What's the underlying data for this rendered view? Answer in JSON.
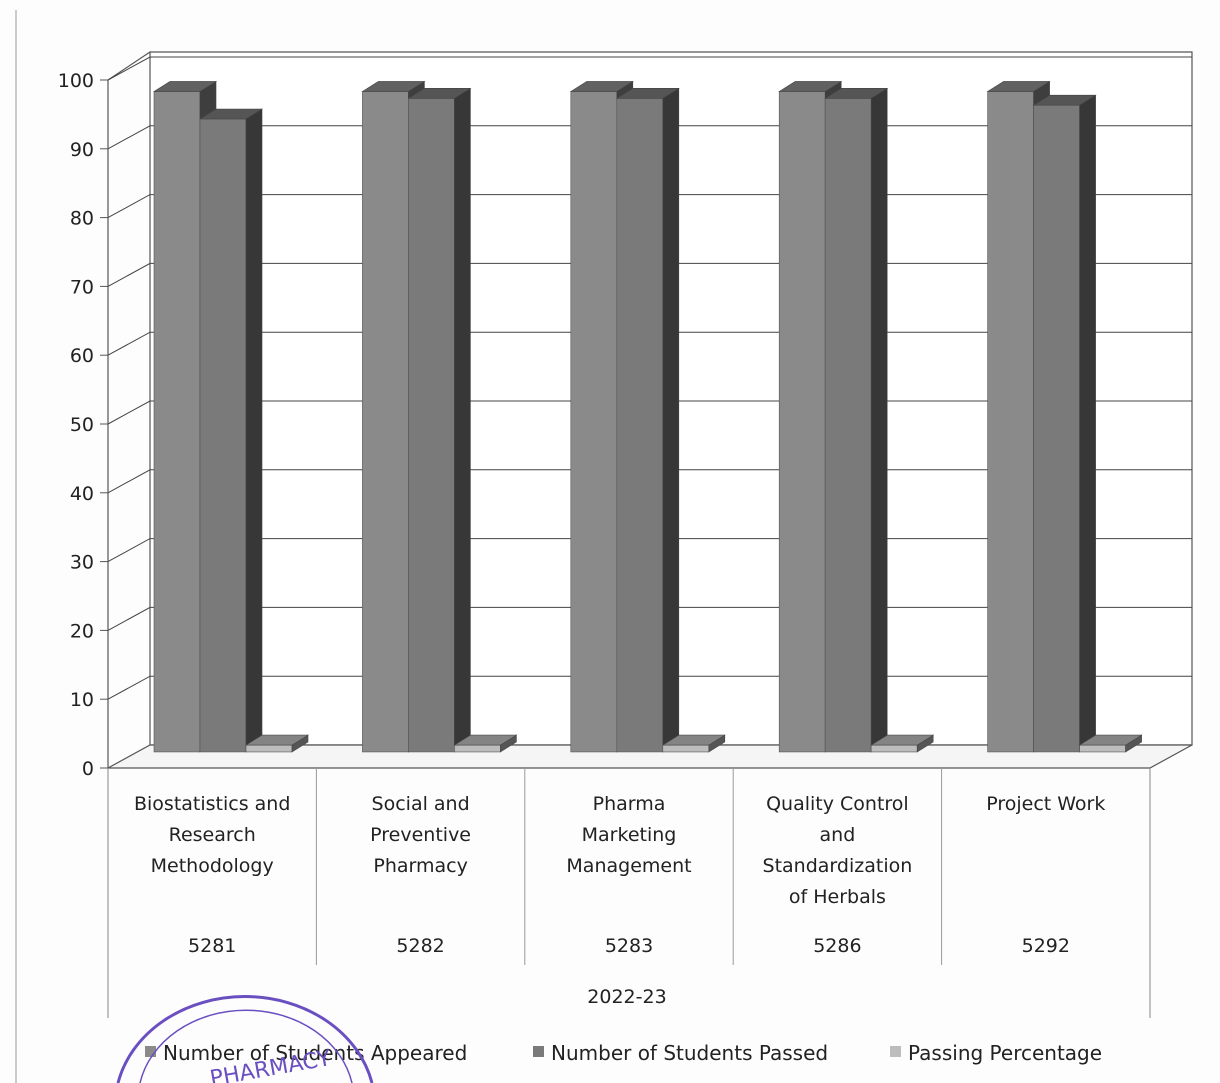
{
  "chart_data": {
    "type": "bar",
    "three_d": true,
    "group_label": "2022-23",
    "categories": [
      {
        "name": "Biostatistics and Research Methodology",
        "lines": [
          "Biostatistics and",
          "Research",
          "Methodology"
        ],
        "code": "5281"
      },
      {
        "name": "Social and Preventive Pharmacy",
        "lines": [
          "Social and",
          "Preventive",
          "Pharmacy"
        ],
        "code": "5282"
      },
      {
        "name": "Pharma Marketing Management",
        "lines": [
          "Pharma",
          "Marketing",
          "Management"
        ],
        "code": "5283"
      },
      {
        "name": "Quality Control and Standardization of Herbals",
        "lines": [
          "Quality Control",
          "and",
          "Standardization",
          "of Herbals"
        ],
        "code": "5286"
      },
      {
        "name": "Project Work",
        "lines": [
          "Project Work"
        ],
        "code": "5292"
      }
    ],
    "series": [
      {
        "name": "Number of Students Appeared",
        "values": [
          96,
          96,
          96,
          96,
          96
        ],
        "color": "#8a8a8a"
      },
      {
        "name": "Number of Students Passed",
        "values": [
          92,
          95,
          95,
          95,
          94
        ],
        "color": "#7a7a7a"
      },
      {
        "name": "Passing Percentage",
        "values": [
          1,
          1,
          1,
          1,
          1
        ],
        "color": "#bdbdbd"
      }
    ],
    "ylim": [
      0,
      100
    ],
    "yticks": [
      0,
      10,
      20,
      30,
      40,
      50,
      60,
      70,
      80,
      90,
      100
    ],
    "grid": true,
    "legend_position": "bottom"
  }
}
